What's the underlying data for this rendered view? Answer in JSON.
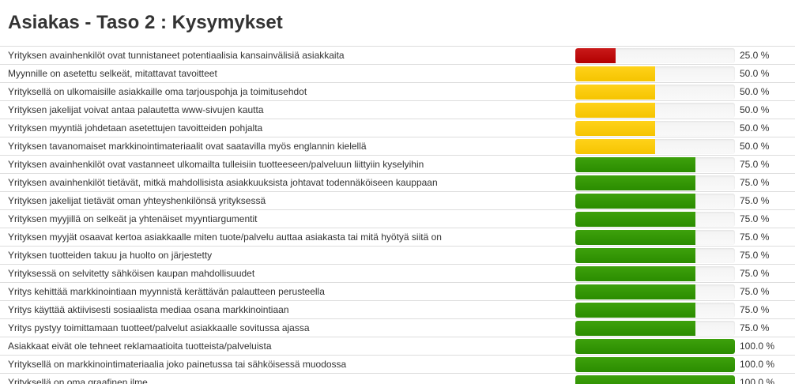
{
  "header": {
    "title": "Asiakas - Taso 2 : Kysymykset"
  },
  "colors": {
    "low": "#c00000",
    "mid": "#ffcc00",
    "high": "#339900"
  },
  "questions": [
    {
      "text": "Yrityksen avainhenkilöt ovat tunnistaneet potentiaalisia kansainvälisiä asiakkaita",
      "percent_label": "25.0 %",
      "value": 25.0,
      "level": "red"
    },
    {
      "text": "Myynnille on asetettu selkeät, mitattavat tavoitteet",
      "percent_label": "50.0 %",
      "value": 50.0,
      "level": "yellow"
    },
    {
      "text": "Yrityksellä on ulkomaisille asiakkaille oma tarjouspohja ja toimitusehdot",
      "percent_label": "50.0 %",
      "value": 50.0,
      "level": "yellow"
    },
    {
      "text": "Yrityksen jakelijat voivat antaa palautetta www-sivujen kautta",
      "percent_label": "50.0 %",
      "value": 50.0,
      "level": "yellow"
    },
    {
      "text": "Yrityksen myyntiä johdetaan asetettujen tavoitteiden pohjalta",
      "percent_label": "50.0 %",
      "value": 50.0,
      "level": "yellow"
    },
    {
      "text": "Yrityksen tavanomaiset markkinointimateriaalit ovat saatavilla myös englannin kielellä",
      "percent_label": "50.0 %",
      "value": 50.0,
      "level": "yellow"
    },
    {
      "text": "Yrityksen avainhenkilöt ovat vastanneet ulkomailta tulleisiin tuotteeseen/palveluun liittyiin kyselyihin",
      "percent_label": "75.0 %",
      "value": 75.0,
      "level": "green"
    },
    {
      "text": "Yrityksen avainhenkilöt tietävät, mitkä mahdollisista asiakkuuksista johtavat todennäköiseen kauppaan",
      "percent_label": "75.0 %",
      "value": 75.0,
      "level": "green"
    },
    {
      "text": "Yrityksen jakelijat tietävät oman yhteyshenkilönsä yrityksessä",
      "percent_label": "75.0 %",
      "value": 75.0,
      "level": "green"
    },
    {
      "text": "Yrityksen myyjillä on selkeät ja yhtenäiset myyntiargumentit",
      "percent_label": "75.0 %",
      "value": 75.0,
      "level": "green"
    },
    {
      "text": "Yrityksen myyjät osaavat kertoa asiakkaalle miten tuote/palvelu auttaa asiakasta tai mitä hyötyä siitä on",
      "percent_label": "75.0 %",
      "value": 75.0,
      "level": "green"
    },
    {
      "text": "Yrityksen tuotteiden takuu ja huolto on järjestetty",
      "percent_label": "75.0 %",
      "value": 75.0,
      "level": "green"
    },
    {
      "text": "Yrityksessä on selvitetty sähköisen kaupan mahdollisuudet",
      "percent_label": "75.0 %",
      "value": 75.0,
      "level": "green"
    },
    {
      "text": "Yritys kehittää markkinointiaan myynnistä kerättävän palautteen perusteella",
      "percent_label": "75.0 %",
      "value": 75.0,
      "level": "green"
    },
    {
      "text": "Yritys käyttää aktiivisesti sosiaalista mediaa osana markkinointiaan",
      "percent_label": "75.0 %",
      "value": 75.0,
      "level": "green"
    },
    {
      "text": "Yritys pystyy toimittamaan tuotteet/palvelut asiakkaalle sovitussa ajassa",
      "percent_label": "75.0 %",
      "value": 75.0,
      "level": "green"
    },
    {
      "text": "Asiakkaat eivät ole tehneet reklamaatioita tuotteista/palveluista",
      "percent_label": "100.0 %",
      "value": 100.0,
      "level": "green"
    },
    {
      "text": "Yrityksellä on markkinointimateriaalia joko painetussa tai sähköisessä muodossa",
      "percent_label": "100.0 %",
      "value": 100.0,
      "level": "green"
    },
    {
      "text": "Yrityksellä on oma graafinen ilme",
      "percent_label": "100.0 %",
      "value": 100.0,
      "level": "green"
    }
  ]
}
